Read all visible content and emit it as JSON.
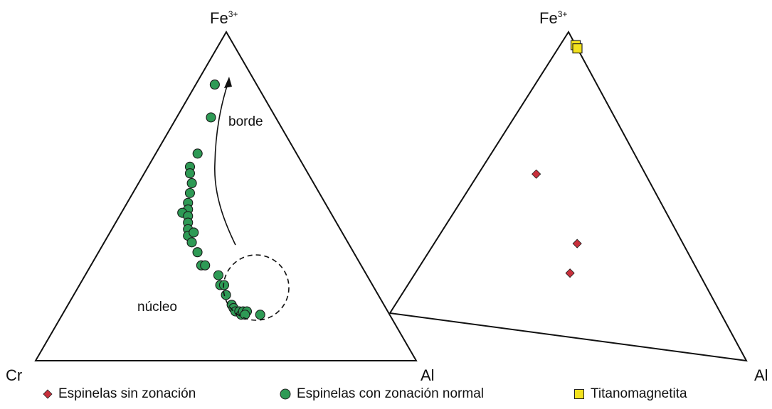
{
  "chart_data": [
    {
      "type": "scatter",
      "subtype": "ternary",
      "vertices": {
        "top": {
          "base": "Fe",
          "sup": "3+"
        },
        "left": "Cr",
        "right": "Al"
      },
      "annotations": [
        "borde",
        "núcleo"
      ],
      "series": [
        {
          "name": "Espinelas con zonación normal",
          "marker": "circle",
          "color": "#2e9a55",
          "points": [
            {
              "Fe": 0.84,
              "Cr": 0.11,
              "Al": 0.05
            },
            {
              "Fe": 0.74,
              "Cr": 0.17,
              "Al": 0.09
            },
            {
              "Fe": 0.63,
              "Cr": 0.26,
              "Al": 0.11
            },
            {
              "Fe": 0.59,
              "Cr": 0.3,
              "Al": 0.11
            },
            {
              "Fe": 0.57,
              "Cr": 0.31,
              "Al": 0.12
            },
            {
              "Fe": 0.54,
              "Cr": 0.32,
              "Al": 0.14
            },
            {
              "Fe": 0.51,
              "Cr": 0.34,
              "Al": 0.15
            },
            {
              "Fe": 0.48,
              "Cr": 0.36,
              "Al": 0.16
            },
            {
              "Fe": 0.46,
              "Cr": 0.37,
              "Al": 0.17
            },
            {
              "Fe": 0.45,
              "Cr": 0.39,
              "Al": 0.16
            },
            {
              "Fe": 0.44,
              "Cr": 0.38,
              "Al": 0.18
            },
            {
              "Fe": 0.42,
              "Cr": 0.39,
              "Al": 0.19
            },
            {
              "Fe": 0.4,
              "Cr": 0.4,
              "Al": 0.2
            },
            {
              "Fe": 0.38,
              "Cr": 0.41,
              "Al": 0.21
            },
            {
              "Fe": 0.39,
              "Cr": 0.39,
              "Al": 0.22
            },
            {
              "Fe": 0.36,
              "Cr": 0.41,
              "Al": 0.23
            },
            {
              "Fe": 0.33,
              "Cr": 0.41,
              "Al": 0.26
            },
            {
              "Fe": 0.29,
              "Cr": 0.42,
              "Al": 0.29
            },
            {
              "Fe": 0.29,
              "Cr": 0.41,
              "Al": 0.3
            },
            {
              "Fe": 0.26,
              "Cr": 0.39,
              "Al": 0.35
            },
            {
              "Fe": 0.23,
              "Cr": 0.4,
              "Al": 0.37
            },
            {
              "Fe": 0.23,
              "Cr": 0.39,
              "Al": 0.38
            },
            {
              "Fe": 0.2,
              "Cr": 0.4,
              "Al": 0.4
            },
            {
              "Fe": 0.17,
              "Cr": 0.4,
              "Al": 0.43
            },
            {
              "Fe": 0.16,
              "Cr": 0.4,
              "Al": 0.44
            },
            {
              "Fe": 0.15,
              "Cr": 0.4,
              "Al": 0.45
            },
            {
              "Fe": 0.15,
              "Cr": 0.39,
              "Al": 0.46
            },
            {
              "Fe": 0.14,
              "Cr": 0.39,
              "Al": 0.47
            },
            {
              "Fe": 0.15,
              "Cr": 0.38,
              "Al": 0.47
            },
            {
              "Fe": 0.15,
              "Cr": 0.37,
              "Al": 0.48
            },
            {
              "Fe": 0.14,
              "Cr": 0.38,
              "Al": 0.48
            },
            {
              "Fe": 0.14,
              "Cr": 0.34,
              "Al": 0.52
            }
          ]
        }
      ]
    },
    {
      "type": "scatter",
      "subtype": "ternary",
      "vertices": {
        "top": {
          "base": "Fe",
          "sup": "3+"
        },
        "right": "Al"
      },
      "series": [
        {
          "name": "Espinelas sin zonación",
          "marker": "diamond",
          "color": "#c8303c",
          "points": [
            {
              "Fe": 0.52,
              "Cr": 0.33,
              "Al": 0.15
            },
            {
              "Fe": 0.31,
              "Cr": 0.32,
              "Al": 0.37
            },
            {
              "Fe": 0.21,
              "Cr": 0.39,
              "Al": 0.4
            }
          ]
        },
        {
          "name": "Titanomagnetita",
          "marker": "square",
          "color": "#f3e21e",
          "points": [
            {
              "Fe": 0.96,
              "Cr": 0.0,
              "Al": 0.04
            },
            {
              "Fe": 0.95,
              "Cr": 0.0,
              "Al": 0.05
            }
          ]
        }
      ]
    }
  ],
  "legend": {
    "items": [
      {
        "label": "Espinelas sin zonación",
        "marker": "diamond",
        "color": "#c8303c"
      },
      {
        "label": "Espinelas con zonación normal",
        "marker": "circle",
        "color": "#2e9a55"
      },
      {
        "label": "Titanomagnetita",
        "marker": "square",
        "color": "#f3e21e"
      }
    ]
  }
}
